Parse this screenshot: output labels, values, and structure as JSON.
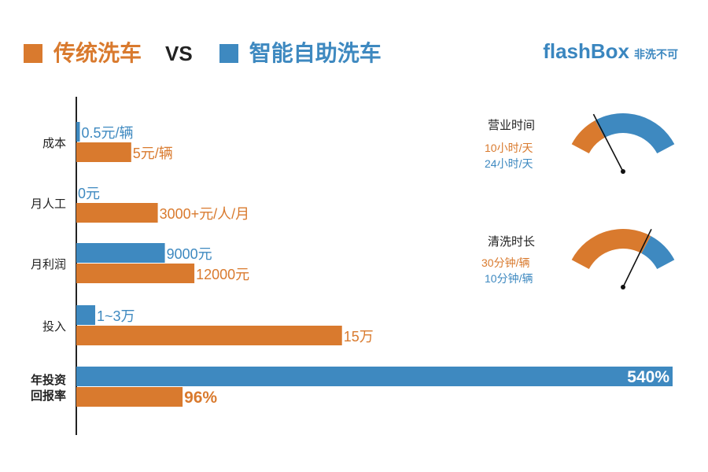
{
  "colors": {
    "traditional": "#d97a2e",
    "smart": "#3e89c0",
    "text": "#222222",
    "axis": "#222222"
  },
  "legend": {
    "traditional_label": "传统洗车",
    "vs": "VS",
    "smart_label": "智能自助洗车"
  },
  "brand": {
    "name": "flashBox",
    "tagline": "非洗不可"
  },
  "chart_data": {
    "type": "bar",
    "orientation": "horizontal",
    "categories": [
      {
        "label": "成本",
        "smart": 0.06,
        "smart_label": "0.5元/辆",
        "traditional": 0.93,
        "traditional_label": "5元/辆"
      },
      {
        "label": "月人工",
        "smart": 0,
        "smart_label": "0元",
        "traditional": 1.38,
        "traditional_label": "3000+元/人/月"
      },
      {
        "label": "月利润",
        "smart": 1.5,
        "smart_label": "9000元",
        "traditional": 2.0,
        "traditional_label": "12000元"
      },
      {
        "label": "投入",
        "smart": 0.32,
        "smart_label": "1~3万",
        "traditional": 4.5,
        "traditional_label": "15万"
      },
      {
        "label_lines": [
          "年投资",
          "回报率"
        ],
        "smart": 10.1,
        "smart_label": "540%",
        "traditional": 1.8,
        "traditional_label": "96%",
        "bold": true
      }
    ],
    "series": [
      {
        "name": "智能自助洗车",
        "key": "smart",
        "color": "#3e89c0"
      },
      {
        "name": "传统洗车",
        "key": "traditional",
        "color": "#d97a2e"
      }
    ],
    "xlim": [
      0,
      10.1
    ],
    "grid": false,
    "legend_position": "top-left"
  },
  "gauges": [
    {
      "title": "营业时间",
      "traditional_text": "10小时/天",
      "smart_text": "24小时/天",
      "traditional_fraction": 0.27,
      "needle_fraction": 0.28,
      "left_color": "#d97a2e",
      "right_color": "#3e89c0"
    },
    {
      "title": "清洗时长",
      "traditional_text": "30分钟/辆",
      "smart_text": "10分钟/辆",
      "traditional_fraction": 0.73,
      "needle_fraction": 0.71,
      "left_color": "#d97a2e",
      "right_color": "#3e89c0"
    }
  ]
}
